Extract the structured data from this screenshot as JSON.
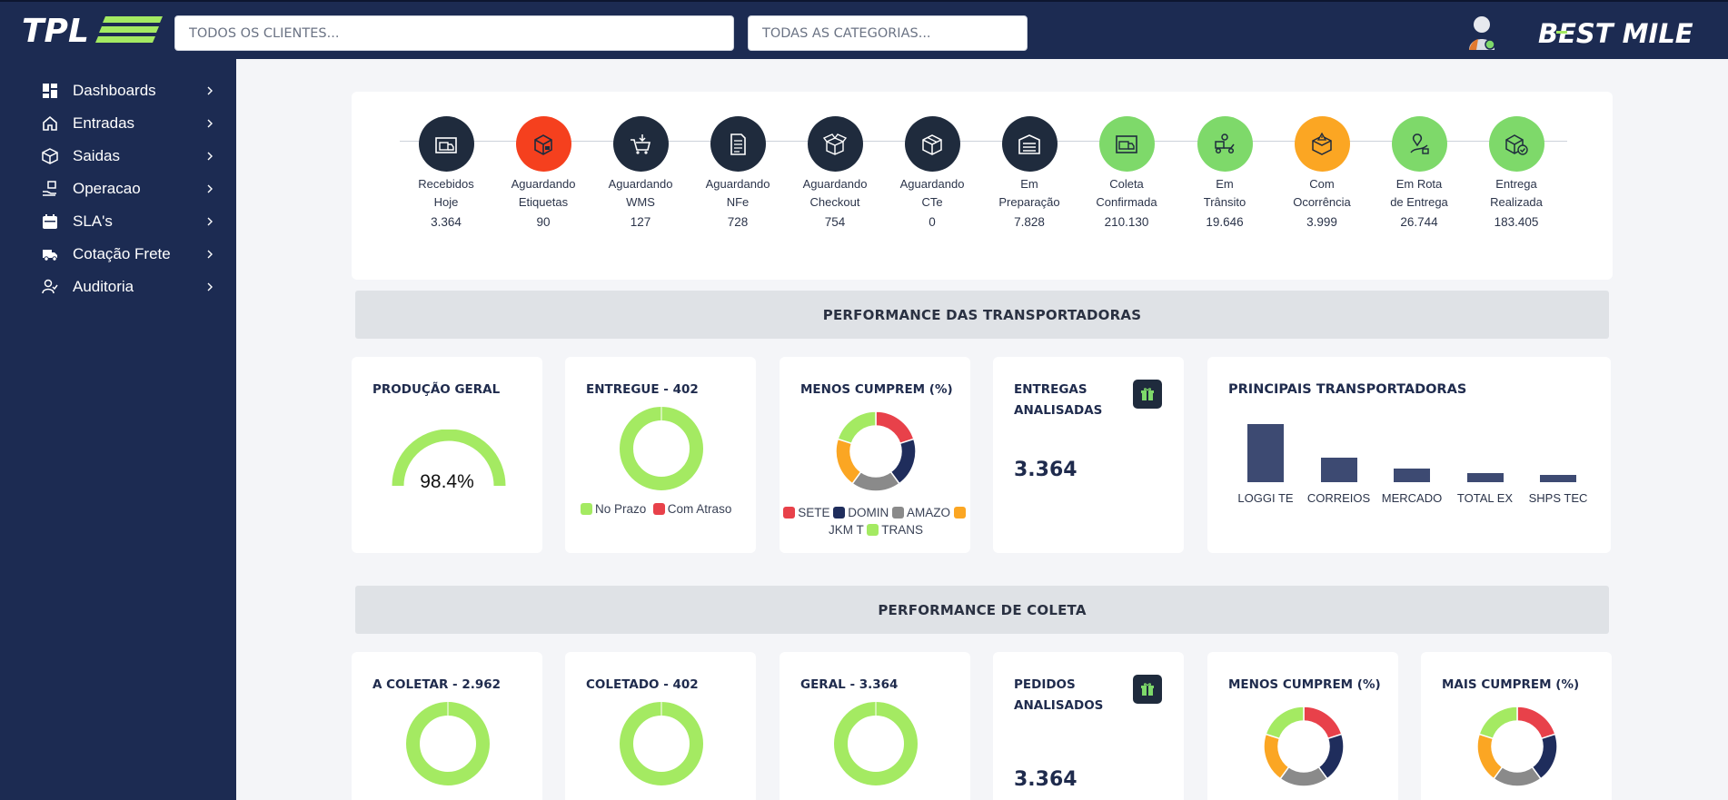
{
  "header": {
    "brand_logo_text": "TPL",
    "client_search_placeholder": "TODOS OS CLIENTES...",
    "category_search_placeholder": "TODAS AS CATEGORIAS...",
    "partner_logo_text": "BEST MILE"
  },
  "sidebar": {
    "items": [
      {
        "label": "Dashboards",
        "icon": "dashboard-icon"
      },
      {
        "label": "Entradas",
        "icon": "home-icon"
      },
      {
        "label": "Saidas",
        "icon": "box-icon"
      },
      {
        "label": "Operacao",
        "icon": "hand-box-icon"
      },
      {
        "label": "SLA's",
        "icon": "calendar-icon"
      },
      {
        "label": "Cotação Frete",
        "icon": "truck-icon"
      },
      {
        "label": "Auditoria",
        "icon": "user-check-icon"
      }
    ]
  },
  "status_flow": [
    {
      "line1": "Recebidos",
      "line2": "Hoje",
      "value": "3.364",
      "color": "#1f2b3d",
      "icon": "warehouse-truck-icon"
    },
    {
      "line1": "Aguardando",
      "line2": "Etiquetas",
      "value": "90",
      "color": "#f5401e",
      "icon": "package-label-icon"
    },
    {
      "line1": "Aguardando",
      "line2": "WMS",
      "value": "127",
      "color": "#1f2b3d",
      "icon": "cart-download-icon"
    },
    {
      "line1": "Aguardando",
      "line2": "NFe",
      "value": "728",
      "color": "#1f2b3d",
      "icon": "document-icon"
    },
    {
      "line1": "Aguardando",
      "line2": "Checkout",
      "value": "754",
      "color": "#1f2b3d",
      "icon": "open-box-icon"
    },
    {
      "line1": "Aguardando",
      "line2": "CTe",
      "value": "0",
      "color": "#1f2b3d",
      "icon": "box-cube-icon"
    },
    {
      "line1": "Em",
      "line2": "Preparação",
      "value": "7.828",
      "color": "#1f2b3d",
      "icon": "warehouse-icon"
    },
    {
      "line1": "Coleta",
      "line2": "Confirmada",
      "value": "210.130",
      "color": "#7ed96a",
      "icon": "truck-building-icon"
    },
    {
      "line1": "Em",
      "line2": "Trânsito",
      "value": "19.646",
      "color": "#7ed96a",
      "icon": "delivery-scooter-icon"
    },
    {
      "line1": "Com",
      "line2": "Ocorrência",
      "value": "3.999",
      "color": "#fba623",
      "icon": "box-alert-icon"
    },
    {
      "line1": "Em Rota",
      "line2": "de Entrega",
      "value": "26.744",
      "color": "#7ed96a",
      "icon": "route-map-icon"
    },
    {
      "line1": "Entrega",
      "line2": "Realizada",
      "value": "183.405",
      "color": "#7ed96a",
      "icon": "box-check-icon"
    }
  ],
  "sections": {
    "carriers_title": "PERFORMANCE DAS TRANSPORTADORAS",
    "collection_title": "PERFORMANCE DE COLETA"
  },
  "colors": {
    "green": "#a4ea62",
    "red": "#e8414a",
    "navy": "#1f2d5c",
    "gray": "#8a8a8a",
    "orange": "#fba623"
  },
  "carriers": {
    "producao": {
      "title": "PRODUÇÃO GERAL",
      "value_text": "98.4%",
      "percent": 98.4
    },
    "entregue": {
      "title": "ENTREGUE - 402",
      "legend": [
        "No Prazo",
        "Com Atraso"
      ]
    },
    "menos": {
      "title": "MENOS CUMPREM (%)",
      "legend_row1": [
        "SETE",
        "DOMIN",
        "AMAZO"
      ],
      "legend_row2": [
        "JKM T",
        "TRANS"
      ]
    },
    "entregas": {
      "title_line1": "ENTREGAS",
      "title_line2": "ANALISADAS",
      "value": "3.364"
    },
    "principais": {
      "title": "PRINCIPAIS TRANSPORTADORAS"
    }
  },
  "collection": {
    "a_coletar": {
      "title": "A COLETAR - 2.962"
    },
    "coletado": {
      "title": "COLETADO - 402"
    },
    "geral": {
      "title": "GERAL - 3.364"
    },
    "pedidos": {
      "title_line1": "PEDIDOS",
      "title_line2": "ANALISADOS",
      "value": "3.364"
    },
    "menos": {
      "title": "MENOS CUMPREM (%)"
    },
    "mais": {
      "title": "MAIS CUMPREM (%)"
    }
  },
  "chart_data": [
    {
      "type": "bar",
      "title": "PRINCIPAIS TRANSPORTADORAS",
      "categories": [
        "LOGGI TE",
        "CORREIOS",
        "MERCADO",
        "TOTAL EX",
        "SHPS TEC"
      ],
      "values": [
        100,
        42,
        23,
        16,
        13
      ]
    },
    {
      "type": "pie",
      "title": "MENOS CUMPREM (%)",
      "categories": [
        "SETE",
        "DOMIN",
        "AMAZO",
        "JKM T",
        "TRANS"
      ],
      "values": [
        20,
        20,
        20,
        20,
        20
      ]
    },
    {
      "type": "pie",
      "title": "ENTREGUE - 402",
      "categories": [
        "No Prazo",
        "Com Atraso"
      ],
      "values": [
        100,
        0
      ]
    }
  ]
}
